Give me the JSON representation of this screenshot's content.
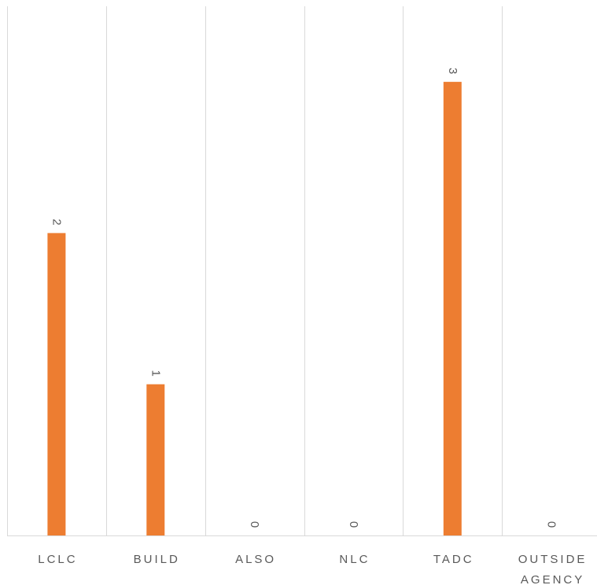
{
  "chart_data": {
    "type": "bar",
    "orientation": "vertical",
    "categories": [
      "LCLC",
      "BUILD",
      "ALSO",
      "NLC",
      "TADC",
      "OUTSIDE AGENCY"
    ],
    "category_lines": [
      [
        "LCLC"
      ],
      [
        "BUILD"
      ],
      [
        "ALSO"
      ],
      [
        "NLC"
      ],
      [
        "TADC"
      ],
      [
        "OUTSIDE",
        "AGENCY"
      ]
    ],
    "series": [
      {
        "values": [
          2,
          1,
          0,
          0,
          3,
          0
        ],
        "color": "#ED7D31"
      }
    ],
    "data_labels": [
      "2",
      "1",
      "0",
      "0",
      "3",
      "0"
    ],
    "ylim": [
      0,
      3.5
    ],
    "data_label_rotation": "rotated 90° clockwise",
    "grid": "vertical category separators",
    "legend": "none"
  }
}
